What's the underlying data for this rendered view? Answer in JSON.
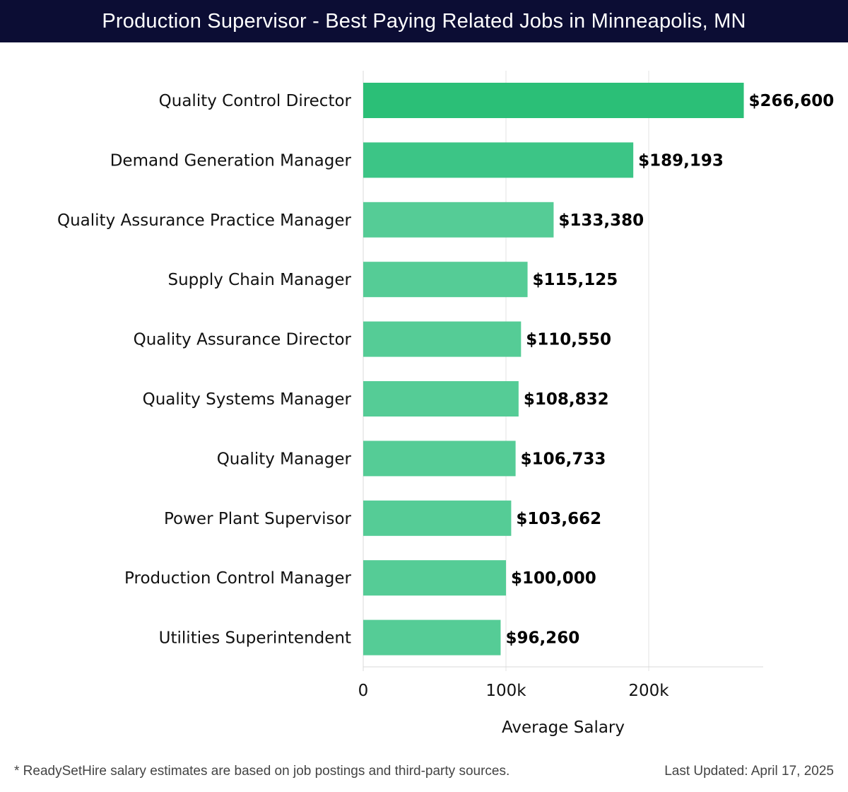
{
  "header": {
    "title": "Production Supervisor - Best Paying Related Jobs in Minneapolis, MN"
  },
  "chart_data": {
    "type": "bar",
    "orientation": "horizontal",
    "title": "Production Supervisor - Best Paying Related Jobs in Minneapolis, MN",
    "xlabel": "Average Salary",
    "ylabel": "",
    "xlim": [
      0,
      280000
    ],
    "xticks": [
      0,
      100000,
      200000
    ],
    "xtick_labels": [
      "0",
      "100k",
      "200k"
    ],
    "grid": true,
    "categories": [
      "Quality Control Director",
      "Demand Generation Manager",
      "Quality Assurance Practice Manager",
      "Supply Chain Manager",
      "Quality Assurance Director",
      "Quality Systems Manager",
      "Quality Manager",
      "Power Plant Supervisor",
      "Production Control Manager",
      "Utilities Superintendent"
    ],
    "values": [
      266600,
      189193,
      133380,
      115125,
      110550,
      108832,
      106733,
      103662,
      100000,
      96260
    ],
    "value_labels": [
      "$266,600",
      "$189,193",
      "$133,380",
      "$115,125",
      "$110,550",
      "$108,832",
      "$106,733",
      "$103,662",
      "$100,000",
      "$96,260"
    ],
    "colors": {
      "top_bar": "#2bbf77",
      "second_bar": "#3cc586",
      "other_bars": "#55cc96",
      "grid": "#e3e3e3",
      "axis": "#d8d8d8"
    }
  },
  "footer": {
    "note": "* ReadySetHire salary estimates are based on job postings and third-party sources.",
    "updated": "Last Updated: April 17, 2025"
  }
}
